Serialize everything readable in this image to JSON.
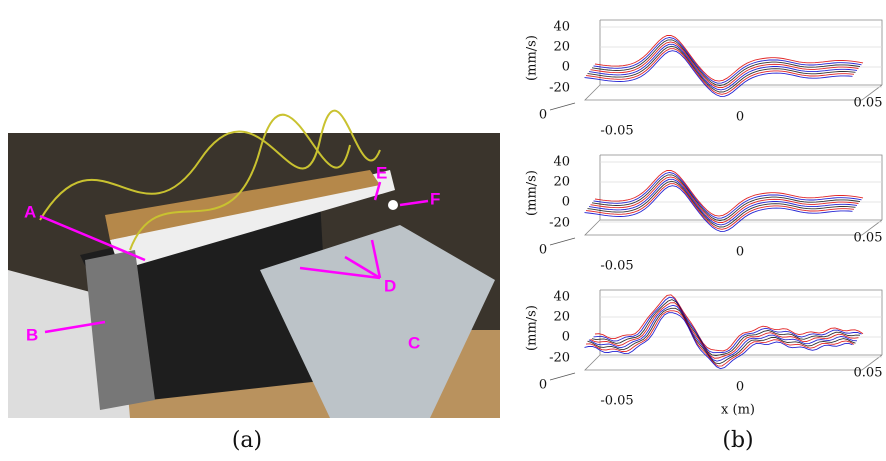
{
  "photo": {
    "labels": [
      "A",
      "B",
      "C",
      "D",
      "E",
      "F"
    ],
    "caption": "(a)"
  },
  "plots": {
    "panels": [
      {
        "y_label": "(mm/s)",
        "y_ticks": [
          "40",
          "20",
          "0",
          "-20"
        ],
        "x_ticks": [
          "-0.05",
          "0",
          "0.05"
        ],
        "depth_tick": "0"
      },
      {
        "y_label": "(mm/s)",
        "y_ticks": [
          "40",
          "20",
          "0",
          "-20"
        ],
        "x_ticks": [
          "-0.05",
          "0",
          "0.05"
        ],
        "depth_tick": "0"
      },
      {
        "y_label": "(mm/s)",
        "y_ticks": [
          "40",
          "20",
          "0",
          "-20"
        ],
        "x_ticks": [
          "-0.05",
          "0",
          "0.05"
        ],
        "depth_tick": "0"
      }
    ],
    "x_label": "x (m)",
    "caption": "(b)"
  }
}
